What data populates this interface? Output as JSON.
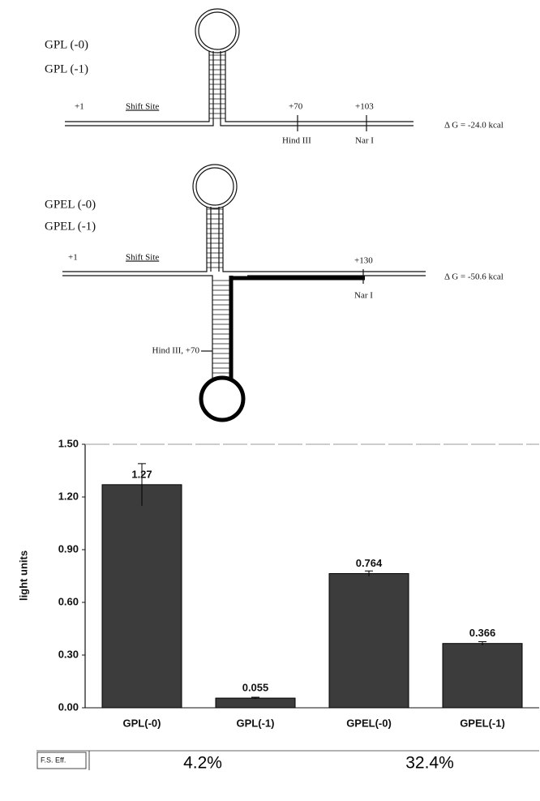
{
  "diagram1": {
    "labels": [
      "GPL (-0)",
      "GPL (-1)"
    ],
    "start": "+1",
    "shift_site": "Shift Site",
    "pos_a": "+70",
    "pos_b": "+103",
    "site_a": "Hind III",
    "site_b": "Nar I",
    "delta_g": "Δ G = -24.0 kcal"
  },
  "diagram2": {
    "labels": [
      "GPEL (-0)",
      "GPEL (-1)"
    ],
    "start": "+1",
    "shift_site": "Shift Site",
    "pos_b": "+130",
    "site_b": "Nar I",
    "site_a": "Hind III, +70",
    "delta_g": "Δ G = -50.6 kcal"
  },
  "chart_data": {
    "type": "bar",
    "y_label": "light units",
    "categories": [
      "GPL(-0)",
      "GPL(-1)",
      "GPEL(-0)",
      "GPEL(-1)"
    ],
    "values": [
      1.27,
      0.055,
      0.764,
      0.366
    ],
    "errors": [
      0.12,
      0.005,
      0.015,
      0.01
    ],
    "color": "#3c3c3c",
    "ylim": [
      0,
      1.5
    ],
    "yticks": [
      {
        "value": 0,
        "label": "0.00"
      },
      {
        "value": 0.3,
        "label": "0.30"
      },
      {
        "value": 0.6,
        "label": "0.60"
      },
      {
        "value": 0.9,
        "label": "0.90"
      },
      {
        "value": 1.2,
        "label": "1.20"
      },
      {
        "value": 1.5,
        "label": "1.50"
      }
    ],
    "grid": false
  },
  "fs_eff": {
    "label": "F.S. Eff.",
    "values": [
      "4.2%",
      "32.4%"
    ]
  }
}
